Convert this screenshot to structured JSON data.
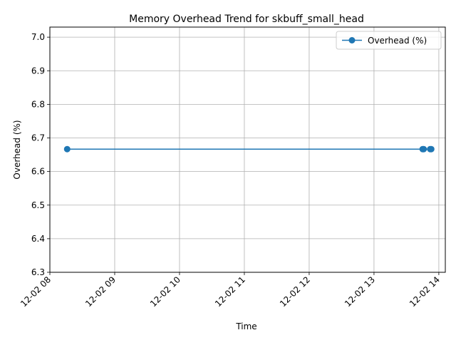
{
  "chart_data": {
    "type": "line",
    "title": "Memory Overhead Trend for skbuff_small_head",
    "xlabel": "Time",
    "ylabel": "Overhead (%)",
    "x_type": "datetime",
    "xlim": [
      "2023-12-02T08:00:00",
      "2023-12-02T14:06:00"
    ],
    "ylim": [
      6.3,
      7.03
    ],
    "x_ticks": [
      {
        "value": "2023-12-02T08:00:00",
        "label": "12-02 08"
      },
      {
        "value": "2023-12-02T09:00:00",
        "label": "12-02 09"
      },
      {
        "value": "2023-12-02T10:00:00",
        "label": "12-02 10"
      },
      {
        "value": "2023-12-02T11:00:00",
        "label": "12-02 11"
      },
      {
        "value": "2023-12-02T12:00:00",
        "label": "12-02 12"
      },
      {
        "value": "2023-12-02T13:00:00",
        "label": "12-02 13"
      },
      {
        "value": "2023-12-02T14:00:00",
        "label": "12-02 14"
      }
    ],
    "y_ticks": [
      {
        "value": 6.3,
        "label": "6.3"
      },
      {
        "value": 6.4,
        "label": "6.4"
      },
      {
        "value": 6.5,
        "label": "6.5"
      },
      {
        "value": 6.6,
        "label": "6.6"
      },
      {
        "value": 6.7,
        "label": "6.7"
      },
      {
        "value": 6.8,
        "label": "6.8"
      },
      {
        "value": 6.9,
        "label": "6.9"
      },
      {
        "value": 7.0,
        "label": "7.0"
      }
    ],
    "grid": true,
    "legend": {
      "position": "upper-right"
    },
    "series": [
      {
        "name": "Overhead (%)",
        "color": "#1f77b4",
        "marker": "circle",
        "x": [
          "2023-12-02T08:16:00",
          "2023-12-02T13:45:00",
          "2023-12-02T13:46:00",
          "2023-12-02T13:52:00",
          "2023-12-02T13:53:00"
        ],
        "y": [
          6.6667,
          6.6667,
          6.6667,
          6.6667,
          6.6667
        ]
      }
    ]
  }
}
